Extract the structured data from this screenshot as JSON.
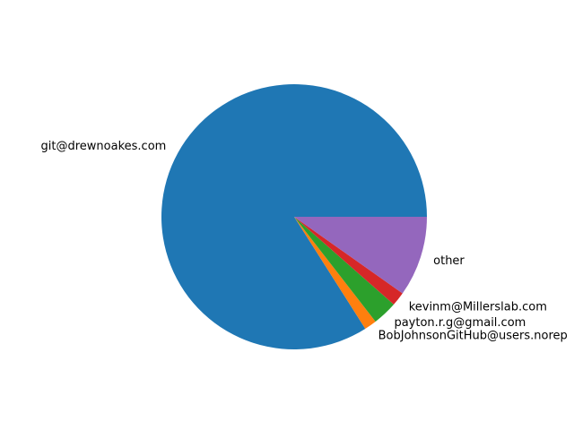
{
  "chart_data": {
    "type": "pie",
    "title": "",
    "start_angle_deg": 0,
    "direction": "counterclockwise",
    "slices": [
      {
        "label": "git@drewnoakes.com",
        "value": 0.84,
        "color": "#1f77b4"
      },
      {
        "label": "BobJohnsonGitHub@users.norep",
        "value": 0.015,
        "color": "#ff7f0e"
      },
      {
        "label": "payton.r.g@gmail.com",
        "value": 0.03,
        "color": "#2ca02c"
      },
      {
        "label": "kevinm@Millerslab.com",
        "value": 0.017,
        "color": "#d62728"
      },
      {
        "label": "other",
        "value": 0.098,
        "color": "#9467bd"
      }
    ]
  }
}
